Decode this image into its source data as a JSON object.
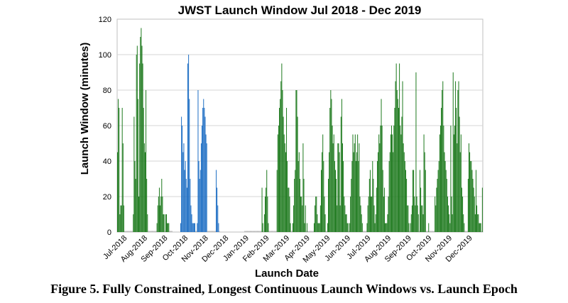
{
  "chart_data": {
    "type": "bar",
    "title": "JWST Launch Window Jul 2018 - Dec 2019",
    "xlabel": "Launch Date",
    "ylabel": "Launch Window (minutes)",
    "ylim": [
      0,
      120
    ],
    "yticks": [
      "0",
      "20",
      "40",
      "60",
      "80",
      "100",
      "120"
    ],
    "grid": true,
    "legend": "none",
    "colors": {
      "green": "#1e7a1e",
      "blue": "#1f6fc4",
      "zero": "#b8b8b8"
    },
    "month_labels": [
      "Jul-2018",
      "Aug-2018",
      "Sep-2018",
      "Oct-2018",
      "Nov-2018",
      "Dec-2018",
      "Jan-2019",
      "Feb-2019",
      "Mar-2019",
      "Apr-2019",
      "May-2019",
      "Jun-2019",
      "Jul-2019",
      "Aug-2019",
      "Sep-2019",
      "Oct-2019",
      "Nov-2019",
      "Dec-2019"
    ],
    "series": [
      {
        "color_key": "green",
        "start_day": 0,
        "values": [
          45,
          75,
          70,
          10,
          15,
          15,
          70,
          50,
          15,
          0,
          0,
          0,
          0,
          0,
          0,
          0,
          0,
          0,
          0,
          0,
          10,
          65,
          40,
          30,
          100,
          105,
          75,
          20,
          95,
          110,
          115,
          105,
          95,
          70,
          50,
          45,
          80,
          30,
          10,
          0,
          0,
          0,
          0,
          0,
          0,
          0,
          0,
          0,
          0,
          0,
          5,
          15,
          20,
          25,
          15,
          20,
          30,
          20,
          10,
          10,
          0,
          10,
          10,
          5,
          5,
          5,
          0,
          0,
          0,
          0
        ]
      },
      {
        "color_key": "blue",
        "start_day": 80,
        "values": [
          5,
          65,
          60,
          45,
          50,
          35,
          40,
          30,
          25,
          95,
          100,
          75,
          30,
          15,
          10,
          5,
          5,
          5,
          5,
          0,
          0,
          5,
          80,
          40,
          30,
          35,
          50,
          60,
          70,
          75,
          70,
          65,
          55,
          50,
          0,
          0,
          0,
          0,
          0,
          0,
          0,
          0,
          0,
          0,
          0,
          35,
          25,
          15,
          5,
          0
        ]
      },
      {
        "color_key": "green",
        "start_day": 161,
        "values": [
          0,
          0,
          0,
          0,
          0,
          0,
          0,
          0,
          0,
          0,
          0,
          0,
          0,
          0,
          0,
          0,
          0,
          0,
          0,
          0,
          0,
          0,
          25,
          5,
          0,
          10,
          20,
          25,
          35,
          20,
          5,
          0,
          0,
          0,
          0,
          0,
          0,
          0,
          0,
          0,
          0,
          35,
          55,
          60,
          70,
          75,
          85,
          95,
          80,
          65,
          55,
          50,
          45,
          70,
          40,
          25,
          25,
          20,
          5,
          0,
          0,
          5,
          15,
          30,
          35,
          80,
          80,
          65,
          40,
          45,
          30,
          20,
          20,
          15,
          50,
          30,
          5,
          15,
          0,
          5,
          0,
          0,
          0,
          0,
          0,
          0,
          0,
          0,
          5,
          15,
          20,
          20,
          10,
          5,
          5,
          5,
          15,
          35,
          45,
          55,
          40,
          20,
          10,
          0,
          0,
          5,
          30,
          45,
          70,
          80,
          75,
          60,
          50,
          55,
          40,
          35,
          30,
          15,
          50,
          50,
          45,
          15,
          65,
          75,
          50,
          40,
          20,
          15,
          10,
          10,
          5,
          5,
          0,
          5,
          20,
          30,
          40,
          55,
          45,
          50,
          55,
          40,
          45,
          55,
          40,
          50,
          20,
          15,
          10,
          5,
          0,
          0,
          0,
          0,
          0,
          5,
          15,
          20,
          30,
          35,
          20,
          20,
          40,
          30,
          15,
          5,
          10,
          25,
          40,
          45,
          55,
          50,
          60,
          75,
          60,
          35,
          20,
          25,
          5,
          5,
          5,
          10,
          20,
          40,
          45,
          55,
          60,
          55,
          45,
          60,
          70,
          85,
          95,
          80,
          75,
          70,
          95,
          60,
          55,
          65,
          85,
          50,
          45,
          40,
          35,
          30,
          15,
          15,
          5,
          0,
          5,
          10,
          15,
          35,
          35,
          20,
          15,
          90,
          20,
          15,
          10,
          0,
          35,
          25,
          15,
          15,
          10,
          55,
          45,
          35,
          0,
          0,
          0,
          5,
          0,
          0,
          0,
          0,
          0,
          0,
          0,
          20,
          15,
          25,
          30,
          35,
          40,
          55,
          60,
          70,
          80,
          85,
          60,
          45,
          40,
          35,
          30,
          20,
          15,
          10,
          5,
          60,
          20,
          10,
          90,
          55,
          60,
          85,
          70,
          50,
          80,
          85,
          65,
          45,
          55,
          25,
          20,
          10,
          5,
          0,
          0,
          0,
          0,
          30,
          50,
          45,
          40,
          40,
          35,
          30,
          25,
          20,
          10,
          35,
          15,
          10,
          10,
          5,
          5,
          5,
          0,
          25
        ]
      }
    ]
  },
  "caption": "Figure 5.  Fully Constrained, Longest Continuous Launch Windows vs. Launch Epoch"
}
